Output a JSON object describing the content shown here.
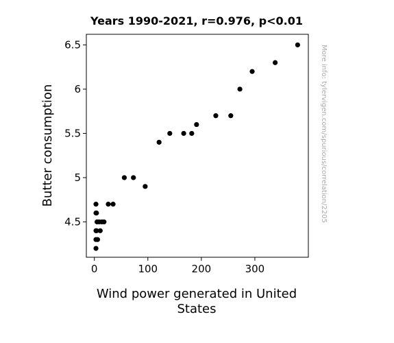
{
  "chart_data": {
    "type": "scatter",
    "title": "Years 1990-2021, r=0.976, p<0.01",
    "xlabel": [
      "Wind power generated in United",
      "States"
    ],
    "ylabel": "Butter consumption",
    "xlim": [
      -15,
      400
    ],
    "ylim": [
      4.1,
      6.62
    ],
    "xticks": [
      0,
      100,
      200,
      300
    ],
    "yticks": [
      4.5,
      5,
      5.5,
      6,
      6.5
    ],
    "ytick_labels": [
      "4.5",
      "5",
      "5.5",
      "6",
      "6.5"
    ],
    "grid": false,
    "marker_color": "#000000",
    "points": [
      {
        "x": 3,
        "y": 4.7
      },
      {
        "x": 3,
        "y": 4.6
      },
      {
        "x": 4,
        "y": 4.6
      },
      {
        "x": 3,
        "y": 4.4
      },
      {
        "x": 4,
        "y": 4.4
      },
      {
        "x": 3,
        "y": 4.3
      },
      {
        "x": 6,
        "y": 4.3
      },
      {
        "x": 3,
        "y": 4.2
      },
      {
        "x": 5,
        "y": 4.5
      },
      {
        "x": 9,
        "y": 4.5
      },
      {
        "x": 14,
        "y": 4.5
      },
      {
        "x": 18,
        "y": 4.5
      },
      {
        "x": 11,
        "y": 4.4
      },
      {
        "x": 26,
        "y": 4.7
      },
      {
        "x": 35,
        "y": 4.7
      },
      {
        "x": 56,
        "y": 5.0
      },
      {
        "x": 73,
        "y": 5.0
      },
      {
        "x": 95,
        "y": 4.9
      },
      {
        "x": 121,
        "y": 5.4
      },
      {
        "x": 141,
        "y": 5.5
      },
      {
        "x": 167,
        "y": 5.5
      },
      {
        "x": 182,
        "y": 5.5
      },
      {
        "x": 191,
        "y": 5.6
      },
      {
        "x": 227,
        "y": 5.7
      },
      {
        "x": 255,
        "y": 5.7
      },
      {
        "x": 272,
        "y": 6.0
      },
      {
        "x": 295,
        "y": 6.2
      },
      {
        "x": 338,
        "y": 6.3
      },
      {
        "x": 380,
        "y": 6.5
      }
    ]
  },
  "credit": "More info: tylervigen.com/spurious/correlation/2205"
}
